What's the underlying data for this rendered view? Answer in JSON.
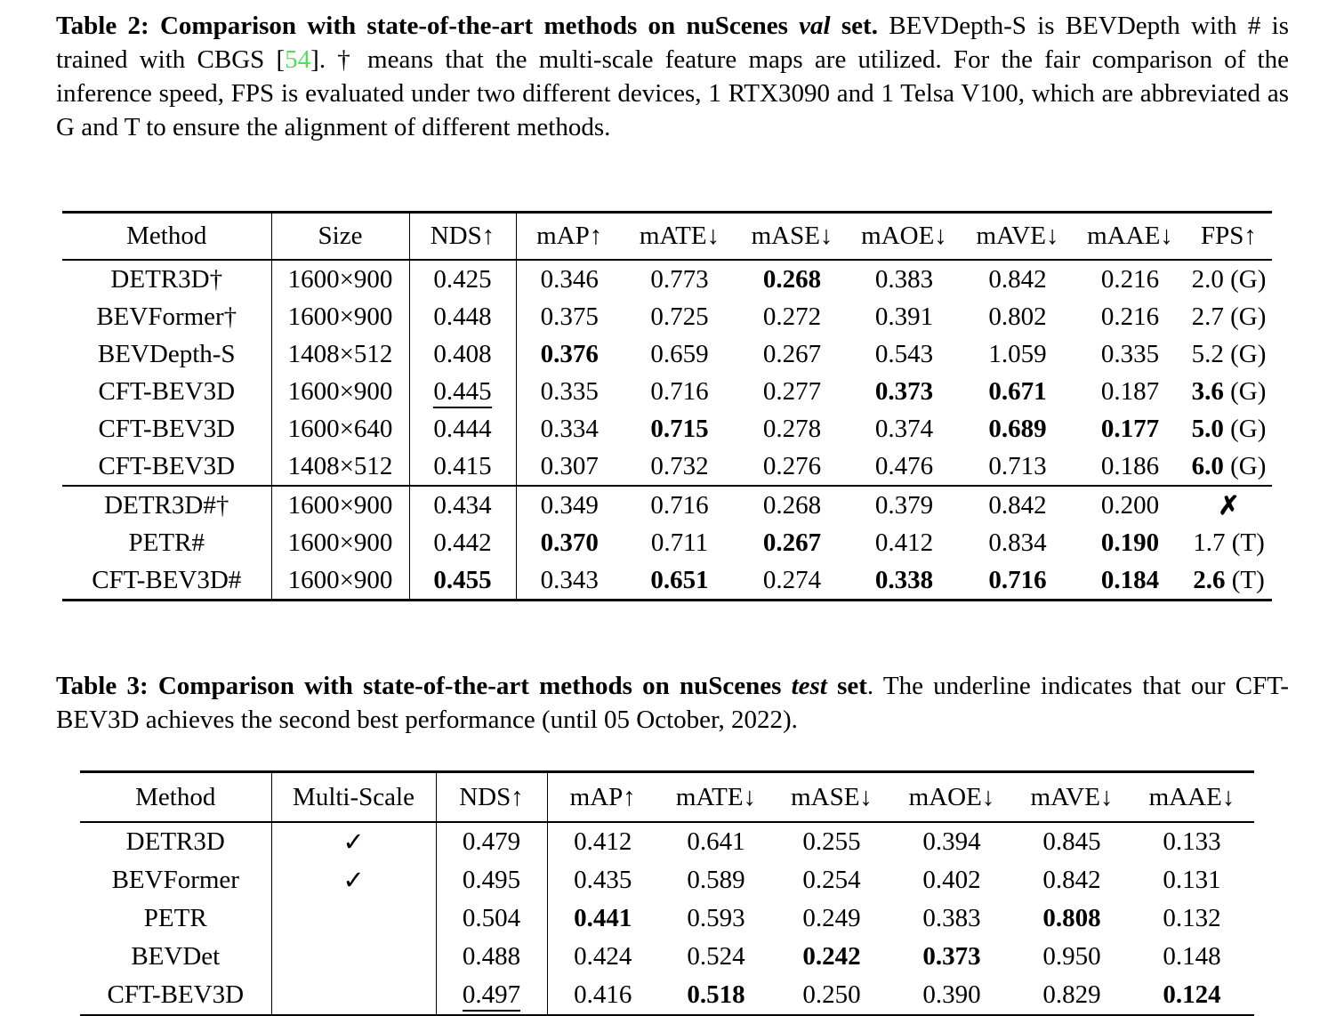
{
  "colors": {
    "background": "#ffffff",
    "text": "#000000",
    "citation_green": "#55dd55"
  },
  "caption_table2": {
    "segments": [
      {
        "text": "Table 2:  Comparison with state-of-the-art methods on nuScenes ",
        "style": "bold"
      },
      {
        "text": "val",
        "style": "bold-italic"
      },
      {
        "text": " set.",
        "style": "bold"
      },
      {
        "text": "  BEVDepth-S is BEVDepth with # is trained with CBGS [",
        "style": "regular"
      },
      {
        "text": "54",
        "style": "citation"
      },
      {
        "text": "].  † means that the multi-scale feature maps are utilized. For the fair comparison of the inference speed, FPS is evaluated under two different devices, 1 RTX3090 and 1 Telsa V100, which are abbreviated as G and T to ensure the alignment of different methods.",
        "style": "regular"
      }
    ]
  },
  "table2": {
    "headers": [
      "Method",
      "Size",
      "NDS↑",
      "mAP↑",
      "mATE↓",
      "mASE↓",
      "mAOE↓",
      "mAVE↓",
      "mAAE↓",
      "FPS↑"
    ],
    "rows": [
      {
        "cells": [
          {
            "t": "DETR3D†"
          },
          {
            "t": "1600×900"
          },
          {
            "t": "0.425"
          },
          {
            "t": "0.346"
          },
          {
            "t": "0.773"
          },
          {
            "t": "0.268",
            "b": true
          },
          {
            "t": "0.383"
          },
          {
            "t": "0.842"
          },
          {
            "t": "0.216"
          },
          {
            "t": "2.0",
            "suf": " (G)"
          }
        ]
      },
      {
        "cells": [
          {
            "t": "BEVFormer†"
          },
          {
            "t": "1600×900"
          },
          {
            "t": "0.448"
          },
          {
            "t": "0.375"
          },
          {
            "t": "0.725"
          },
          {
            "t": "0.272"
          },
          {
            "t": "0.391"
          },
          {
            "t": "0.802"
          },
          {
            "t": "0.216"
          },
          {
            "t": "2.7",
            "suf": " (G)"
          }
        ]
      },
      {
        "cells": [
          {
            "t": "BEVDepth-S"
          },
          {
            "t": "1408×512"
          },
          {
            "t": "0.408"
          },
          {
            "t": "0.376",
            "b": true
          },
          {
            "t": "0.659"
          },
          {
            "t": "0.267"
          },
          {
            "t": "0.543"
          },
          {
            "t": "1.059"
          },
          {
            "t": "0.335"
          },
          {
            "t": "5.2",
            "suf": " (G)"
          }
        ]
      },
      {
        "cells": [
          {
            "t": "CFT-BEV3D"
          },
          {
            "t": "1600×900"
          },
          {
            "t": "0.445",
            "u": true
          },
          {
            "t": "0.335"
          },
          {
            "t": "0.716"
          },
          {
            "t": "0.277"
          },
          {
            "t": "0.373",
            "b": true
          },
          {
            "t": "0.671",
            "b": true
          },
          {
            "t": "0.187"
          },
          {
            "t": "3.6",
            "b": true,
            "suf": " (G)"
          }
        ]
      },
      {
        "cells": [
          {
            "t": "CFT-BEV3D"
          },
          {
            "t": "1600×640"
          },
          {
            "t": "0.444"
          },
          {
            "t": "0.334"
          },
          {
            "t": "0.715",
            "b": true
          },
          {
            "t": "0.278"
          },
          {
            "t": "0.374"
          },
          {
            "t": "0.689",
            "b": true
          },
          {
            "t": "0.177",
            "b": true
          },
          {
            "t": "5.0",
            "b": true,
            "suf": " (G)"
          }
        ]
      },
      {
        "cells": [
          {
            "t": "CFT-BEV3D"
          },
          {
            "t": "1408×512"
          },
          {
            "t": "0.415"
          },
          {
            "t": "0.307"
          },
          {
            "t": "0.732"
          },
          {
            "t": "0.276"
          },
          {
            "t": "0.476"
          },
          {
            "t": "0.713"
          },
          {
            "t": "0.186"
          },
          {
            "t": "6.0",
            "b": true,
            "suf": " (G)"
          }
        ]
      },
      {
        "group_start": true,
        "cells": [
          {
            "t": "DETR3D#†"
          },
          {
            "t": "1600×900"
          },
          {
            "t": "0.434"
          },
          {
            "t": "0.349"
          },
          {
            "t": "0.716"
          },
          {
            "t": "0.268"
          },
          {
            "t": "0.379"
          },
          {
            "t": "0.842"
          },
          {
            "t": "0.200"
          },
          {
            "t": "✗",
            "b": true
          }
        ]
      },
      {
        "cells": [
          {
            "t": "PETR#"
          },
          {
            "t": "1600×900"
          },
          {
            "t": "0.442"
          },
          {
            "t": "0.370",
            "b": true
          },
          {
            "t": "0.711"
          },
          {
            "t": "0.267",
            "b": true
          },
          {
            "t": "0.412"
          },
          {
            "t": "0.834"
          },
          {
            "t": "0.190",
            "b": true
          },
          {
            "t": "1.7",
            "suf": " (T)"
          }
        ]
      },
      {
        "cells": [
          {
            "t": "CFT-BEV3D#"
          },
          {
            "t": "1600×900"
          },
          {
            "t": "0.455",
            "b": true
          },
          {
            "t": "0.343"
          },
          {
            "t": "0.651",
            "b": true
          },
          {
            "t": "0.274"
          },
          {
            "t": "0.338",
            "b": true
          },
          {
            "t": "0.716",
            "b": true
          },
          {
            "t": "0.184",
            "b": true
          },
          {
            "t": "2.6",
            "b": true,
            "suf": " (T)"
          }
        ]
      }
    ]
  },
  "caption_table3": {
    "segments": [
      {
        "text": "Table 3: Comparison with state-of-the-art methods on nuScenes ",
        "style": "bold"
      },
      {
        "text": "test",
        "style": "bold-italic"
      },
      {
        "text": " set",
        "style": "bold"
      },
      {
        "text": ". The underline indicates that our CFT-BEV3D achieves the second best performance (until 05 October, 2022).",
        "style": "regular"
      }
    ]
  },
  "table3": {
    "headers": [
      "Method",
      "Multi-Scale",
      "NDS↑",
      "mAP↑",
      "mATE↓",
      "mASE↓",
      "mAOE↓",
      "mAVE↓",
      "mAAE↓"
    ],
    "rows": [
      {
        "cells": [
          {
            "t": "DETR3D"
          },
          {
            "t": "✓"
          },
          {
            "t": "0.479"
          },
          {
            "t": "0.412"
          },
          {
            "t": "0.641"
          },
          {
            "t": "0.255"
          },
          {
            "t": "0.394"
          },
          {
            "t": "0.845"
          },
          {
            "t": "0.133"
          }
        ]
      },
      {
        "cells": [
          {
            "t": "BEVFormer"
          },
          {
            "t": "✓"
          },
          {
            "t": "0.495"
          },
          {
            "t": "0.435"
          },
          {
            "t": "0.589"
          },
          {
            "t": "0.254"
          },
          {
            "t": "0.402"
          },
          {
            "t": "0.842"
          },
          {
            "t": "0.131"
          }
        ]
      },
      {
        "cells": [
          {
            "t": "PETR"
          },
          {
            "t": ""
          },
          {
            "t": "0.504"
          },
          {
            "t": "0.441",
            "b": true
          },
          {
            "t": "0.593"
          },
          {
            "t": "0.249"
          },
          {
            "t": "0.383"
          },
          {
            "t": "0.808",
            "b": true
          },
          {
            "t": "0.132"
          }
        ]
      },
      {
        "cells": [
          {
            "t": "BEVDet"
          },
          {
            "t": ""
          },
          {
            "t": "0.488"
          },
          {
            "t": "0.424"
          },
          {
            "t": "0.524"
          },
          {
            "t": "0.242",
            "b": true
          },
          {
            "t": "0.373",
            "b": true
          },
          {
            "t": "0.950"
          },
          {
            "t": "0.148"
          }
        ]
      },
      {
        "cells": [
          {
            "t": "CFT-BEV3D"
          },
          {
            "t": ""
          },
          {
            "t": "0.497",
            "u": true
          },
          {
            "t": "0.416"
          },
          {
            "t": "0.518",
            "b": true
          },
          {
            "t": "0.250"
          },
          {
            "t": "0.390"
          },
          {
            "t": "0.829"
          },
          {
            "t": "0.124",
            "b": true
          }
        ]
      }
    ]
  }
}
